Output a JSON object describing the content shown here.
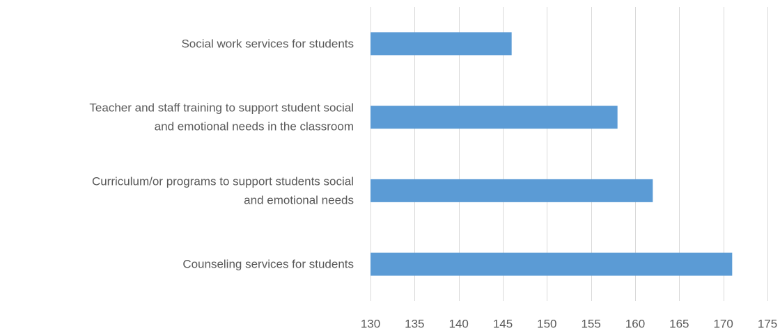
{
  "chart_data": {
    "type": "bar",
    "orientation": "horizontal",
    "title": "",
    "xlabel": "",
    "ylabel": "",
    "categories": [
      "Social work services for students",
      "Teacher and staff training to support student social and emotional needs in the classroom",
      "Curriculum/or programs to support students social and emotional needs",
      "Counseling services for students"
    ],
    "category_label_lines": [
      [
        "Social work services for students"
      ],
      [
        "Teacher and staff training to support student social",
        "and emotional needs in the classroom"
      ],
      [
        "Curriculum/or programs to support students social",
        "and emotional needs"
      ],
      [
        "Counseling services for students"
      ]
    ],
    "values": [
      146,
      158,
      162,
      171
    ],
    "xlim": [
      130,
      175
    ],
    "ticks": [
      130,
      135,
      140,
      145,
      150,
      155,
      160,
      165,
      170,
      175
    ],
    "grid": true,
    "legend": "none",
    "colors": {
      "bar": "#5b9bd5",
      "grid": "#d9d9d9",
      "text": "#595959"
    }
  }
}
